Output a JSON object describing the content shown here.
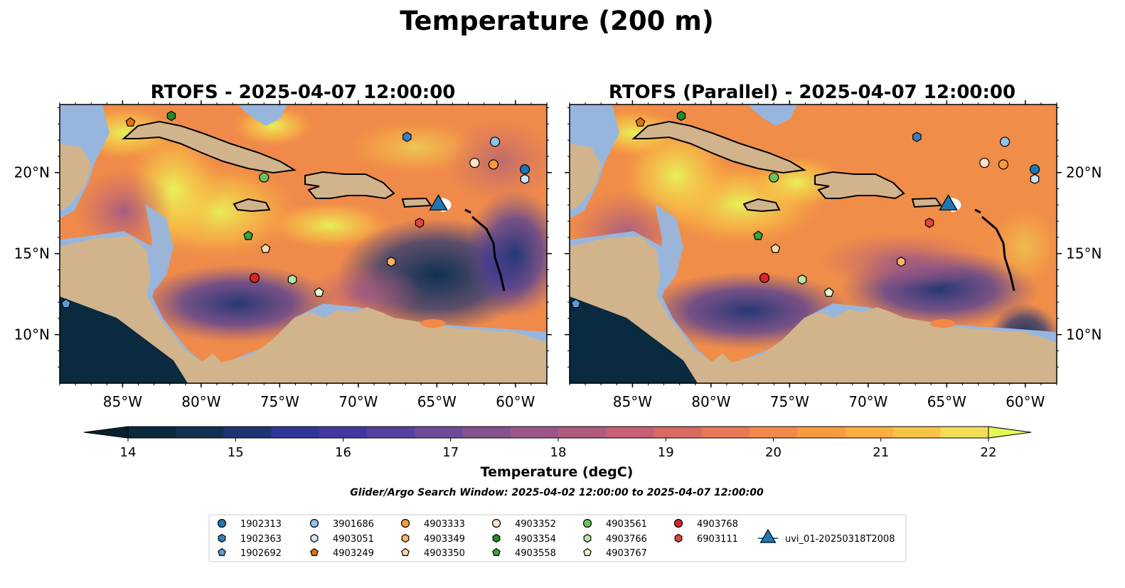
{
  "figure": {
    "title": "Temperature (200 m)",
    "panels": [
      {
        "title": "RTOFS - 2025-04-07 12:00:00"
      },
      {
        "title": "RTOFS (Parallel) - 2025-04-07 12:00:00"
      }
    ],
    "lon_ticks": [
      "85°W",
      "80°W",
      "75°W",
      "70°W",
      "65°W",
      "60°W"
    ],
    "lat_ticks": [
      "20°N",
      "15°N",
      "10°N"
    ],
    "colorbar": {
      "label": "Temperature (degC)",
      "ticks": [
        "14",
        "15",
        "16",
        "17",
        "18",
        "19",
        "20",
        "21",
        "22"
      ],
      "colors": [
        "#0a2a3f",
        "#0f3050",
        "#1c3475",
        "#2e3796",
        "#43389f",
        "#58409f",
        "#6e4a98",
        "#84528f",
        "#9a5689",
        "#b05a80",
        "#c65f73",
        "#d86a63",
        "#e97856",
        "#f3884b",
        "#f99a41",
        "#fbae3f",
        "#f9c445",
        "#f2dd55"
      ],
      "under_color": "#06202f",
      "over_color": "#e6f75a"
    },
    "search_window": "Glider/Argo Search Window: 2025-04-02 12:00:00 to 2025-04-07 12:00:00",
    "colors": {
      "land": "#d2b48c",
      "shelf": "#97b6de",
      "deep": "#0a2a3f"
    }
  },
  "legend": {
    "entries": [
      {
        "label": "1902313",
        "marker": "circle",
        "color": "#1f77b4"
      },
      {
        "label": "1902363",
        "marker": "hexagon",
        "color": "#3a7ec4"
      },
      {
        "label": "1902692",
        "marker": "pentagon",
        "color": "#5b9bd5"
      },
      {
        "label": "3901686",
        "marker": "circle",
        "color": "#8fc3e8"
      },
      {
        "label": "4903051",
        "marker": "hexagon",
        "color": "#cfe6f7"
      },
      {
        "label": "4903249",
        "marker": "pentagon",
        "color": "#e6700d"
      },
      {
        "label": "4903333",
        "marker": "circle",
        "color": "#f49a3c"
      },
      {
        "label": "4903349",
        "marker": "hexagon",
        "color": "#fbb26b"
      },
      {
        "label": "4903350",
        "marker": "pentagon",
        "color": "#fdd7a8"
      },
      {
        "label": "4903352",
        "marker": "circle",
        "color": "#fde2c8"
      },
      {
        "label": "4903354",
        "marker": "hexagon",
        "color": "#238b21"
      },
      {
        "label": "4903558",
        "marker": "pentagon",
        "color": "#3aa33a"
      },
      {
        "label": "4903561",
        "marker": "circle",
        "color": "#6cc05c"
      },
      {
        "label": "4903766",
        "marker": "hexagon",
        "color": "#b6e5a4"
      },
      {
        "label": "4903767",
        "marker": "pentagon",
        "color": "#e4f7d9"
      },
      {
        "label": "4903768",
        "marker": "circle",
        "color": "#d62728"
      },
      {
        "label": "6903111",
        "marker": "hexagon",
        "color": "#e0453c"
      },
      {
        "label": "uvi_01-20250318T2008",
        "marker": "triangle",
        "color": "#1f77b4"
      }
    ]
  },
  "floats": [
    {
      "id": "1902313",
      "lon": -59.4,
      "lat": 20.2
    },
    {
      "id": "1902363",
      "lon": -66.9,
      "lat": 22.2
    },
    {
      "id": "1902692",
      "lon": -88.6,
      "lat": 11.9
    },
    {
      "id": "3901686",
      "lon": -61.3,
      "lat": 21.9
    },
    {
      "id": "4903051",
      "lon": -59.4,
      "lat": 19.6
    },
    {
      "id": "4903249",
      "lon": -84.5,
      "lat": 23.1
    },
    {
      "id": "4903333",
      "lon": -61.4,
      "lat": 20.5
    },
    {
      "id": "4903349",
      "lon": -67.9,
      "lat": 14.5
    },
    {
      "id": "4903350",
      "lon": -75.9,
      "lat": 15.3
    },
    {
      "id": "4903352",
      "lon": -62.6,
      "lat": 20.6
    },
    {
      "id": "4903354",
      "lon": -81.9,
      "lat": 23.5
    },
    {
      "id": "4903558",
      "lon": -77.0,
      "lat": 16.1
    },
    {
      "id": "4903561",
      "lon": -76.0,
      "lat": 19.7
    },
    {
      "id": "4903766",
      "lon": -74.2,
      "lat": 13.4
    },
    {
      "id": "4903767",
      "lon": -72.5,
      "lat": 12.6
    },
    {
      "id": "4903768",
      "lon": -76.6,
      "lat": 13.5
    },
    {
      "id": "6903111",
      "lon": -66.1,
      "lat": 16.9
    }
  ],
  "glider": {
    "id": "uvi_01-20250318T2008",
    "lon": -64.9,
    "lat": 18.0
  },
  "map_extent": {
    "lon": [
      -89,
      -58
    ],
    "lat": [
      7,
      24.2
    ]
  }
}
